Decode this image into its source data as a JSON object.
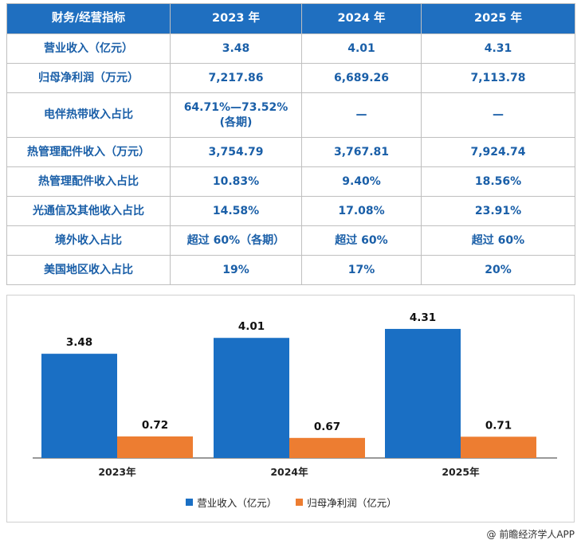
{
  "table": {
    "headers": [
      "财务/经营指标",
      "2023 年",
      "2024 年",
      "2025 年"
    ],
    "rows": [
      [
        "营业收入（亿元）",
        "3.48",
        "4.01",
        "4.31"
      ],
      [
        "归母净利润（万元）",
        "7,217.86",
        "6,689.26",
        "7,113.78"
      ],
      [
        "电伴热带收入占比",
        "64.71%—73.52%",
        "—",
        "—"
      ],
      [
        "热管理配件收入（万元）",
        "3,754.79",
        "3,767.81",
        "7,924.74"
      ],
      [
        "热管理配件收入占比",
        "10.83%",
        "9.40%",
        "18.56%"
      ],
      [
        "光通信及其他收入占比",
        "14.58%",
        "17.08%",
        "23.91%"
      ],
      [
        "境外收入占比",
        "超过 60%（各期）",
        "超过 60%",
        "超过 60%"
      ],
      [
        "美国地区收入占比",
        "19%",
        "17%",
        "20%"
      ]
    ],
    "row3_note": "(各期)"
  },
  "chart_data": {
    "type": "bar",
    "categories": [
      "2023年",
      "2024年",
      "2025年"
    ],
    "series": [
      {
        "name": "营业收入（亿元）",
        "values": [
          3.48,
          4.01,
          4.31
        ],
        "color": "#1a6fc4"
      },
      {
        "name": "归母净利润（亿元）",
        "values": [
          0.72,
          0.67,
          0.71
        ],
        "color": "#ed7d31"
      }
    ],
    "value_labels": [
      [
        "3.48",
        "4.01",
        "4.31"
      ],
      [
        "0.72",
        "0.67",
        "0.71"
      ]
    ],
    "legend": "bottom-center"
  },
  "source": "@ 前瞻经济学人APP"
}
